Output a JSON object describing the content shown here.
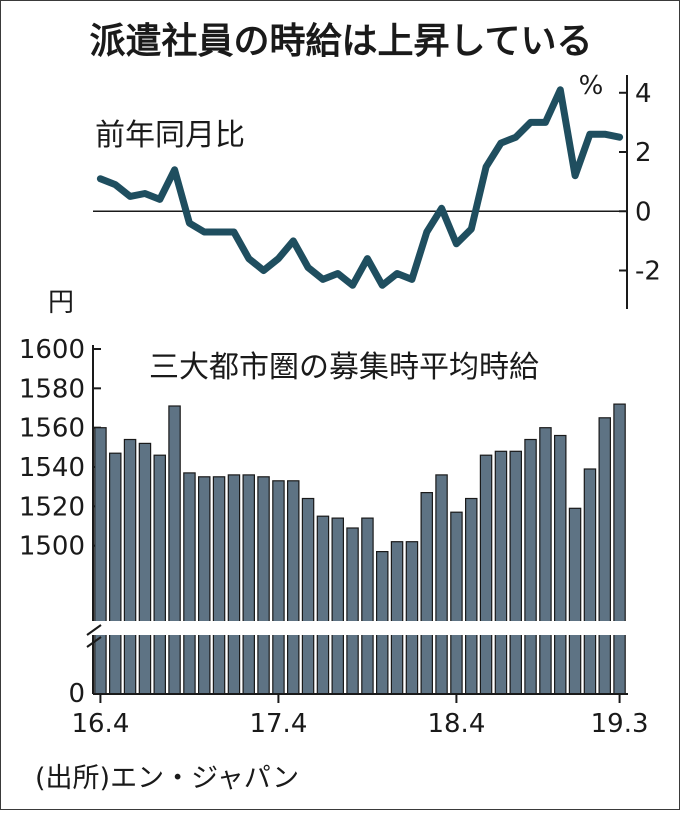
{
  "title": "派遣社員の時給は上昇している",
  "source": "(出所)エン・ジャパン",
  "chart_data": [
    {
      "type": "line",
      "title": "前年同月比",
      "unit": "%",
      "ylim": [
        -3.3,
        4.6
      ],
      "yticks": [
        4,
        2,
        0,
        -2
      ],
      "ytick_labels": [
        "4",
        "2",
        "0",
        "-2"
      ],
      "color": "#1f4e5f",
      "values": [
        1.1,
        0.9,
        0.5,
        0.6,
        0.4,
        1.4,
        -0.4,
        -0.7,
        -0.7,
        -0.7,
        -1.6,
        -2.0,
        -1.6,
        -1.0,
        -1.9,
        -2.3,
        -2.1,
        -2.5,
        -1.6,
        -2.5,
        -2.1,
        -2.3,
        -0.7,
        0.1,
        -1.1,
        -0.6,
        1.5,
        2.3,
        2.5,
        3.0,
        3.0,
        4.1,
        1.2,
        2.6,
        2.6,
        2.5
      ]
    },
    {
      "type": "bar",
      "title": "三大都市圏の募集時平均時給",
      "unit": "円",
      "ylim": [
        1480,
        1600
      ],
      "yticks": [
        1600,
        1580,
        1560,
        1540,
        1520,
        1500
      ],
      "ytick_labels": [
        "1600",
        "1580",
        "1560",
        "1540",
        "1520",
        "1500"
      ],
      "zero_label": "0",
      "axis_break": true,
      "color": "#5e7384",
      "x_labels": [
        "16.4",
        "17.4",
        "18.4",
        "19.3"
      ],
      "values": [
        1560,
        1547,
        1554,
        1552,
        1546,
        1571,
        1537,
        1535,
        1535,
        1536,
        1536,
        1535,
        1533,
        1533,
        1524,
        1515,
        1514,
        1509,
        1514,
        1497,
        1502,
        1502,
        1527,
        1536,
        1517,
        1524,
        1546,
        1548,
        1548,
        1554,
        1560,
        1556,
        1519,
        1539,
        1565,
        1572
      ]
    }
  ]
}
